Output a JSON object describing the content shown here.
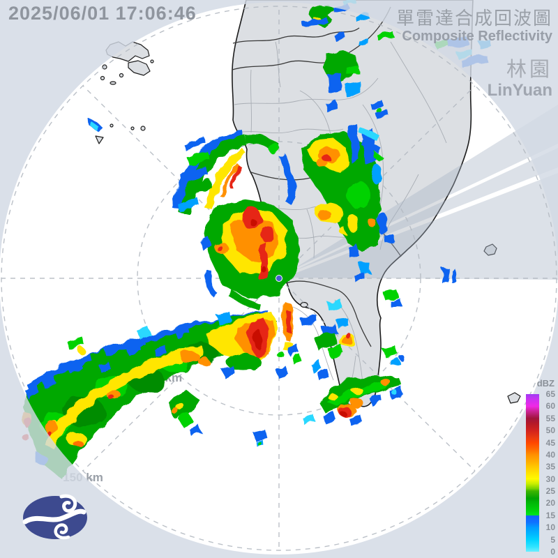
{
  "header": {
    "timestamp": "2025/06/01 17:06:46",
    "title_zh": "單雷達合成回波圖",
    "title_en": "Composite Reflectivity",
    "station_zh": "林園",
    "station_en": "LinYuan"
  },
  "map": {
    "range_label_75": "75 km",
    "range_label_150": "150 km",
    "station_marker": "radar-site-linyuan"
  },
  "legend": {
    "unit": "dBZ",
    "ticks": [
      "65",
      "60",
      "55",
      "50",
      "45",
      "40",
      "35",
      "30",
      "25",
      "20",
      "15",
      "10",
      "5",
      "0"
    ]
  },
  "colors": {
    "outside_mask": "#dde2ea",
    "sea": "#ffffff",
    "land": "#dcdfe3",
    "coastline": "#1c1c1c",
    "ring": "#b4bac2",
    "text_gray": "#9aa0a8",
    "echo_cyan": "#2ad8ff",
    "echo_blue": "#0a64f0",
    "echo_lightblue": "#00a0ff",
    "echo_green": "#00a800",
    "echo_yellow": "#ffe600",
    "echo_orange": "#ff9000",
    "echo_red": "#e62814",
    "logo_blue": "#3d4a8f"
  }
}
